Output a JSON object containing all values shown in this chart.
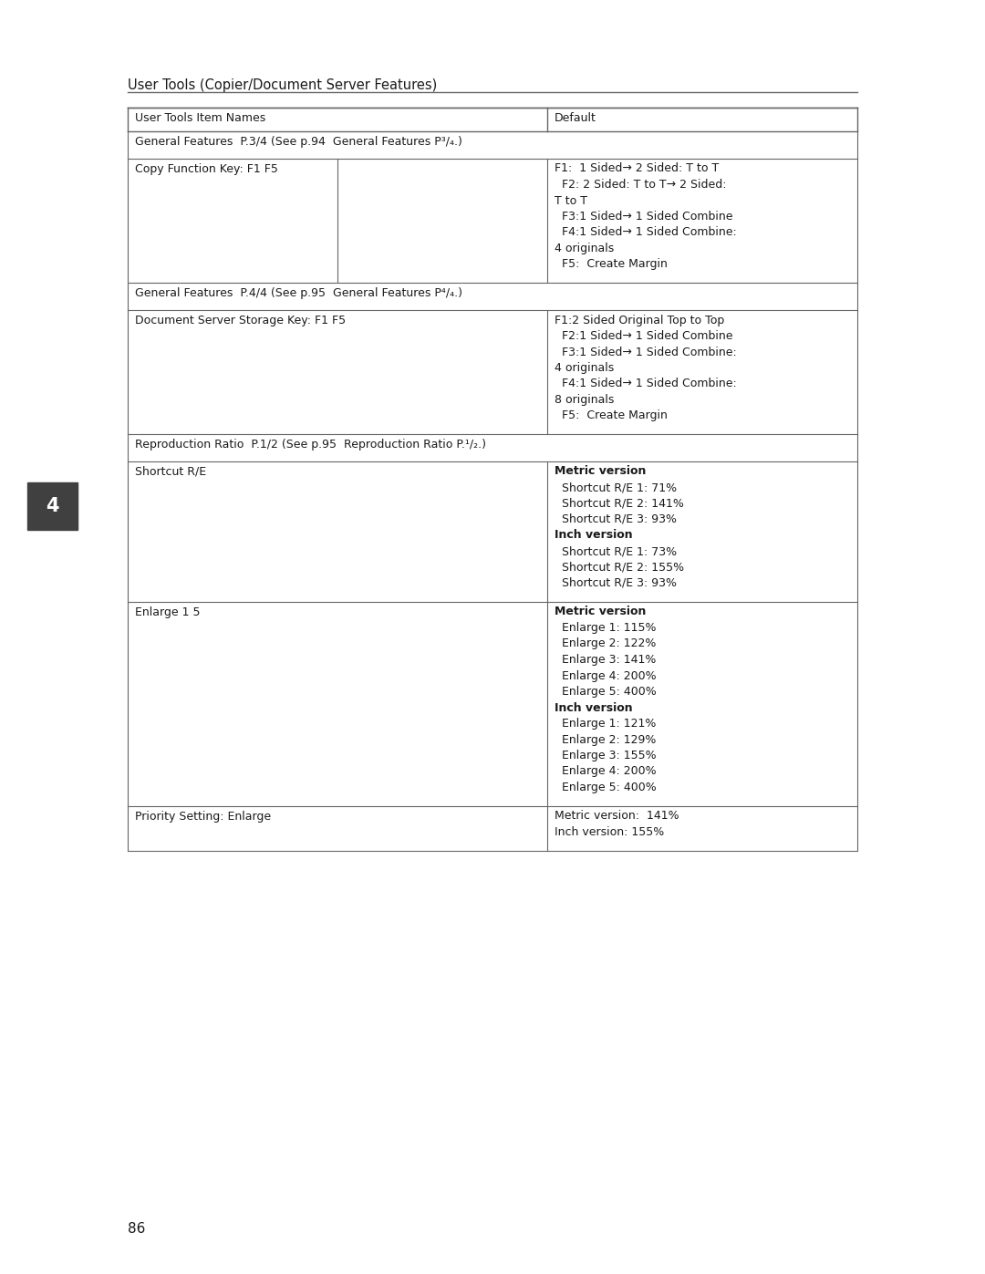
{
  "page_header": "User Tools (Copier/Document Server Features)",
  "page_number": "86",
  "tab_label": "4",
  "col_header": [
    "User Tools Item Names",
    "Default"
  ],
  "table_rows": [
    {
      "type": "full_span",
      "text": "General Features  P.3/4 (See p.94  General Features P³/₄.)"
    },
    {
      "type": "two_col",
      "left": "Copy Function Key: F1 F5",
      "right_lines": [
        {
          "text": "F1:  1 Sided→ 2 Sided: T to T",
          "indent": false,
          "bold": false
        },
        {
          "text": " F2: 2 Sided: T to T→ 2 Sided:",
          "indent": false,
          "bold": false
        },
        {
          "text": "T to T",
          "indent": false,
          "bold": false
        },
        {
          "text": " F3:1 Sided→ 1 Sided Combine",
          "indent": false,
          "bold": false
        },
        {
          "text": " F4:1 Sided→ 1 Sided Combine:",
          "indent": false,
          "bold": false
        },
        {
          "text": "4 originals",
          "indent": false,
          "bold": false
        },
        {
          "text": " F5:  Create Margin",
          "indent": false,
          "bold": false
        }
      ],
      "has_mid_divider": true
    },
    {
      "type": "full_span",
      "text": "General Features  P.4/4 (See p.95  General Features P⁴/₄.)"
    },
    {
      "type": "two_col",
      "left": "Document Server Storage Key: F1 F5",
      "right_lines": [
        {
          "text": "F1:2 Sided Original Top to Top",
          "indent": false,
          "bold": false
        },
        {
          "text": " F2:1 Sided→ 1 Sided Combine",
          "indent": false,
          "bold": false
        },
        {
          "text": " F3:1 Sided→ 1 Sided Combine:",
          "indent": false,
          "bold": false
        },
        {
          "text": "4 originals",
          "indent": false,
          "bold": false
        },
        {
          "text": " F4:1 Sided→ 1 Sided Combine:",
          "indent": false,
          "bold": false
        },
        {
          "text": "8 originals",
          "indent": false,
          "bold": false
        },
        {
          "text": " F5:  Create Margin",
          "indent": false,
          "bold": false
        }
      ],
      "has_mid_divider": false
    },
    {
      "type": "full_span",
      "text": "Reproduction Ratio  P.1/2 (See p.95  Reproduction Ratio P.¹/₂.)"
    },
    {
      "type": "two_col",
      "left": "Shortcut R/E",
      "right_lines": [
        {
          "text": "Metric version",
          "indent": false,
          "bold": true
        },
        {
          "text": " Shortcut R/E 1: 71%",
          "indent": true,
          "bold": false
        },
        {
          "text": " Shortcut R/E 2: 141%",
          "indent": true,
          "bold": false
        },
        {
          "text": " Shortcut R/E 3: 93%",
          "indent": true,
          "bold": false
        },
        {
          "text": "Inch version",
          "indent": false,
          "bold": true
        },
        {
          "text": " Shortcut R/E 1: 73%",
          "indent": true,
          "bold": false
        },
        {
          "text": " Shortcut R/E 2: 155%",
          "indent": true,
          "bold": false
        },
        {
          "text": " Shortcut R/E 3: 93%",
          "indent": true,
          "bold": false
        }
      ],
      "has_mid_divider": false
    },
    {
      "type": "two_col",
      "left": "Enlarge 1 5",
      "right_lines": [
        {
          "text": "Metric version",
          "indent": false,
          "bold": true
        },
        {
          "text": " Enlarge 1: 115%",
          "indent": true,
          "bold": false
        },
        {
          "text": " Enlarge 2: 122%",
          "indent": true,
          "bold": false
        },
        {
          "text": " Enlarge 3: 141%",
          "indent": true,
          "bold": false
        },
        {
          "text": " Enlarge 4: 200%",
          "indent": true,
          "bold": false
        },
        {
          "text": " Enlarge 5: 400%",
          "indent": true,
          "bold": false
        },
        {
          "text": "Inch version",
          "indent": false,
          "bold": true
        },
        {
          "text": " Enlarge 1: 121%",
          "indent": true,
          "bold": false
        },
        {
          "text": " Enlarge 2: 129%",
          "indent": true,
          "bold": false
        },
        {
          "text": " Enlarge 3: 155%",
          "indent": true,
          "bold": false
        },
        {
          "text": " Enlarge 4: 200%",
          "indent": true,
          "bold": false
        },
        {
          "text": " Enlarge 5: 400%",
          "indent": true,
          "bold": false
        }
      ],
      "has_mid_divider": false
    },
    {
      "type": "two_col",
      "left": "Priority Setting: Enlarge",
      "right_lines": [
        {
          "text": "Metric version:  141%",
          "indent": false,
          "bold": false
        },
        {
          "text": "Inch version: 155%",
          "indent": false,
          "bold": false
        }
      ],
      "has_mid_divider": false
    }
  ],
  "bg_color": "#ffffff",
  "text_color": "#1a1a1a",
  "line_color": "#666666",
  "font_size_header": 10.5,
  "font_size_body": 9.0,
  "font_size_tab": 15,
  "font_size_page_num": 11
}
